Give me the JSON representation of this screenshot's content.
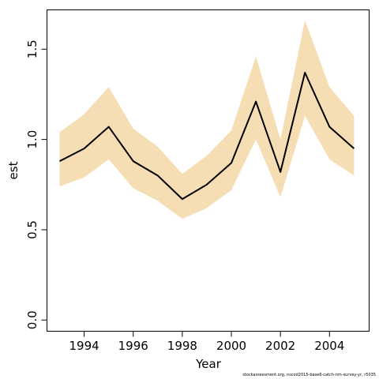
{
  "chart_data": {
    "type": "line",
    "xlabel": "Year",
    "ylabel": "est",
    "xlim": [
      1992.5,
      2005.6
    ],
    "ylim": [
      -0.06,
      1.72
    ],
    "x_ticks": [
      1994,
      1996,
      1998,
      2000,
      2002,
      2004
    ],
    "y_ticks": [
      0.0,
      0.5,
      1.0,
      1.5
    ],
    "y_tick_labels": [
      "0.0",
      "0.5",
      "1.0",
      "1.5"
    ],
    "x": [
      1993,
      1994,
      1995,
      1996,
      1997,
      1998,
      1999,
      2000,
      2001,
      2002,
      2003,
      2004,
      2005
    ],
    "series": [
      {
        "values": [
          0.88,
          0.95,
          1.07,
          0.88,
          0.8,
          0.67,
          0.75,
          0.87,
          1.21,
          0.82,
          1.37,
          1.07,
          0.95
        ],
        "lower": [
          0.74,
          0.79,
          0.89,
          0.73,
          0.66,
          0.56,
          0.62,
          0.72,
          1.0,
          0.68,
          1.13,
          0.89,
          0.8
        ],
        "upper": [
          1.04,
          1.14,
          1.29,
          1.06,
          0.96,
          0.81,
          0.91,
          1.05,
          1.46,
          1.0,
          1.66,
          1.29,
          1.13
        ],
        "line_color": "#000000",
        "band_color": "#f5deb3"
      }
    ],
    "grid": false,
    "legend": "none"
  },
  "footer": {
    "note": "stockassessment.org, nscod2015-base6-catch-nm-survey-yr, r5035"
  }
}
